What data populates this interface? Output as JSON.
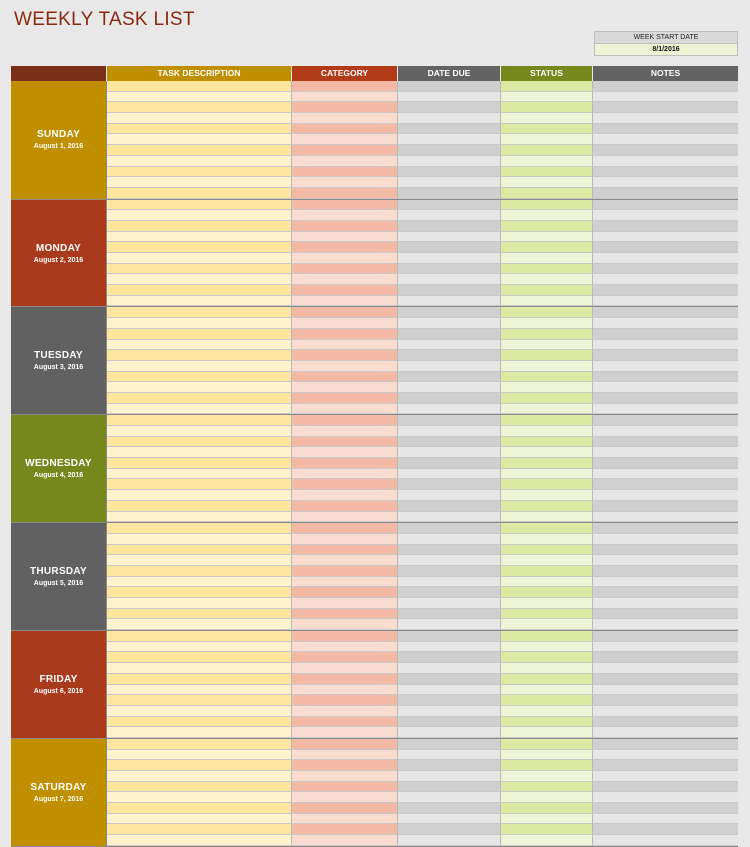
{
  "title": "WEEKLY TASK LIST",
  "week_start": {
    "label": "WEEK START DATE",
    "value": "8/1/2016"
  },
  "columns": [
    {
      "key": "day",
      "label": "",
      "color": "#7a2f17"
    },
    {
      "key": "task",
      "label": "TASK DESCRIPTION",
      "color": "#bf8f00"
    },
    {
      "key": "category",
      "label": "CATEGORY",
      "color": "#b23c17"
    },
    {
      "key": "date_due",
      "label": "DATE DUE",
      "color": "#636363"
    },
    {
      "key": "status",
      "label": "STATUS",
      "color": "#76881d"
    },
    {
      "key": "notes",
      "label": "NOTES",
      "color": "#636363"
    }
  ],
  "days": [
    {
      "name": "SUNDAY",
      "date": "August 1, 2016",
      "color": "#bf8f00",
      "rows": 11
    },
    {
      "name": "MONDAY",
      "date": "August 2, 2016",
      "color": "#a93a1c",
      "rows": 10
    },
    {
      "name": "TUESDAY",
      "date": "August 3, 2016",
      "color": "#616161",
      "rows": 10
    },
    {
      "name": "WEDNESDAY",
      "date": "August 4, 2016",
      "color": "#76881d",
      "rows": 10
    },
    {
      "name": "THURSDAY",
      "date": "August 5, 2016",
      "color": "#616161",
      "rows": 10
    },
    {
      "name": "FRIDAY",
      "date": "August 6, 2016",
      "color": "#a93a1c",
      "rows": 10
    },
    {
      "name": "SATURDAY",
      "date": "August 7, 2016",
      "color": "#bf8f00",
      "rows": 10
    }
  ]
}
